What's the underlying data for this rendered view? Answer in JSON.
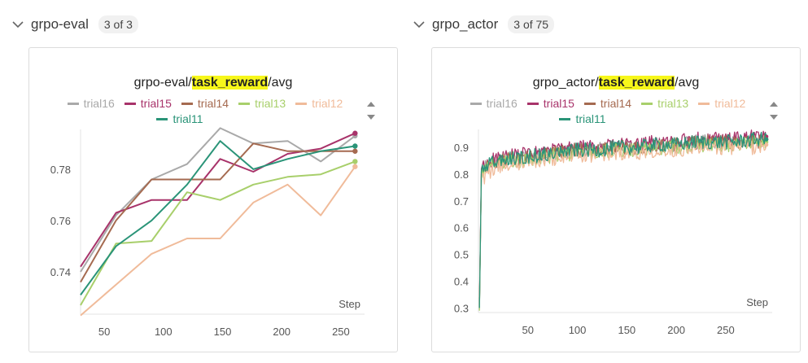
{
  "sections": [
    {
      "title": "grpo-eval",
      "count": "3 of 3"
    },
    {
      "title": "grpo_actor",
      "count": "3 of 75"
    }
  ],
  "colors": {
    "trial16": "#a9a9a9",
    "trial15": "#a8336a",
    "trial14": "#a56a50",
    "trial13": "#a8cf6b",
    "trial12": "#f0bb9a",
    "trial11": "#2a9478"
  },
  "panels": [
    {
      "title_prefix": "grpo-eval/",
      "title_highlight": "task_reward",
      "title_suffix": "/avg",
      "legend_row1": [
        "trial16",
        "trial15",
        "trial14",
        "trial13",
        "trial12"
      ],
      "legend_row2": [
        "trial11"
      ],
      "step_label": "Step"
    },
    {
      "title_prefix": "grpo_actor/",
      "title_highlight": "task_reward",
      "title_suffix": "/avg",
      "legend_row1": [
        "trial16",
        "trial15",
        "trial14",
        "trial13",
        "trial12"
      ],
      "legend_row2": [
        "trial11"
      ],
      "step_label": "Step"
    }
  ],
  "chart_data": [
    {
      "type": "line",
      "title": "grpo-eval/task_reward/avg",
      "xlabel": "Step",
      "xlim": [
        30,
        270
      ],
      "ylim": [
        0.7235,
        0.7955
      ],
      "xticks": [
        50,
        100,
        150,
        200,
        250
      ],
      "yticks": [
        0.74,
        0.76,
        0.78
      ],
      "ytick_labels": [
        "0.74",
        "0.76",
        "0.78"
      ],
      "legend": "top",
      "grid": false,
      "series": [
        {
          "name": "trial16",
          "x": [
            30,
            60,
            90,
            120,
            148,
            176,
            205,
            233,
            262
          ],
          "y": [
            0.74,
            0.762,
            0.776,
            0.782,
            0.796,
            0.79,
            0.791,
            0.783,
            0.793
          ]
        },
        {
          "name": "trial15",
          "x": [
            30,
            60,
            90,
            120,
            148,
            176,
            205,
            233,
            262
          ],
          "y": [
            0.742,
            0.763,
            0.768,
            0.768,
            0.784,
            0.779,
            0.786,
            0.788,
            0.794
          ]
        },
        {
          "name": "trial14",
          "x": [
            30,
            60,
            90,
            120,
            148,
            176,
            205,
            233,
            262
          ],
          "y": [
            0.736,
            0.76,
            0.776,
            0.776,
            0.776,
            0.79,
            0.787,
            0.787,
            0.787
          ]
        },
        {
          "name": "trial13",
          "x": [
            30,
            60,
            90,
            120,
            148,
            176,
            205,
            233,
            262
          ],
          "y": [
            0.727,
            0.751,
            0.752,
            0.771,
            0.768,
            0.774,
            0.777,
            0.778,
            0.783
          ]
        },
        {
          "name": "trial12",
          "x": [
            30,
            60,
            90,
            120,
            148,
            176,
            205,
            233,
            262
          ],
          "y": [
            0.723,
            0.735,
            0.747,
            0.753,
            0.753,
            0.767,
            0.774,
            0.762,
            0.781
          ]
        },
        {
          "name": "trial11",
          "x": [
            30,
            60,
            90,
            120,
            148,
            176,
            205,
            233,
            262
          ],
          "y": [
            0.731,
            0.75,
            0.76,
            0.774,
            0.791,
            0.78,
            0.784,
            0.787,
            0.789
          ]
        }
      ]
    },
    {
      "type": "line",
      "title": "grpo_actor/task_reward/avg",
      "xlabel": "Step",
      "xlim": [
        0,
        297
      ],
      "ylim": [
        0.283,
        0.967
      ],
      "xticks": [
        50,
        100,
        150,
        200,
        250
      ],
      "yticks": [
        0.3,
        0.4,
        0.5,
        0.6,
        0.7,
        0.8,
        0.9
      ],
      "ytick_labels": [
        "0.3",
        "0.4",
        "0.5",
        "0.6",
        "0.7",
        "0.8",
        "0.9"
      ],
      "legend": "top",
      "grid": false,
      "series": [
        {
          "name": "trial16",
          "x": [
            1,
            3,
            6,
            12,
            20,
            40,
            60,
            80,
            100,
            120,
            140,
            160,
            180,
            200,
            220,
            240,
            260,
            280,
            291
          ],
          "y": [
            0.3,
            0.81,
            0.82,
            0.84,
            0.85,
            0.86,
            0.87,
            0.88,
            0.89,
            0.89,
            0.9,
            0.9,
            0.91,
            0.91,
            0.92,
            0.92,
            0.92,
            0.93,
            0.93
          ]
        },
        {
          "name": "trial15",
          "x": [
            1,
            3,
            6,
            12,
            20,
            40,
            60,
            80,
            100,
            120,
            140,
            160,
            180,
            200,
            220,
            240,
            260,
            280,
            291
          ],
          "y": [
            0.31,
            0.82,
            0.83,
            0.85,
            0.86,
            0.87,
            0.88,
            0.89,
            0.9,
            0.9,
            0.91,
            0.91,
            0.92,
            0.92,
            0.93,
            0.93,
            0.93,
            0.94,
            0.94
          ]
        },
        {
          "name": "trial14",
          "x": [
            1,
            3,
            6,
            12,
            20,
            40,
            60,
            80,
            100,
            120,
            140,
            160,
            180,
            200,
            220,
            240,
            260,
            280,
            291
          ],
          "y": [
            0.3,
            0.8,
            0.82,
            0.84,
            0.85,
            0.86,
            0.87,
            0.88,
            0.89,
            0.89,
            0.9,
            0.9,
            0.91,
            0.91,
            0.92,
            0.92,
            0.92,
            0.92,
            0.93
          ]
        },
        {
          "name": "trial13",
          "x": [
            1,
            3,
            6,
            12,
            20,
            40,
            60,
            80,
            100,
            120,
            140,
            160,
            180,
            200,
            220,
            240,
            260,
            280,
            291
          ],
          "y": [
            0.29,
            0.8,
            0.81,
            0.83,
            0.84,
            0.85,
            0.86,
            0.87,
            0.88,
            0.88,
            0.89,
            0.89,
            0.9,
            0.9,
            0.91,
            0.91,
            0.91,
            0.92,
            0.92
          ]
        },
        {
          "name": "trial12",
          "x": [
            1,
            3,
            6,
            12,
            20,
            40,
            60,
            80,
            100,
            120,
            140,
            160,
            180,
            200,
            220,
            240,
            260,
            280,
            291
          ],
          "y": [
            0.34,
            0.78,
            0.79,
            0.81,
            0.83,
            0.84,
            0.85,
            0.86,
            0.87,
            0.87,
            0.88,
            0.88,
            0.89,
            0.89,
            0.9,
            0.9,
            0.9,
            0.9,
            0.91
          ]
        },
        {
          "name": "trial11",
          "x": [
            1,
            3,
            6,
            12,
            20,
            40,
            60,
            80,
            100,
            120,
            140,
            160,
            180,
            200,
            220,
            240,
            260,
            280,
            291
          ],
          "y": [
            0.3,
            0.81,
            0.82,
            0.84,
            0.85,
            0.86,
            0.87,
            0.88,
            0.89,
            0.89,
            0.9,
            0.9,
            0.91,
            0.91,
            0.92,
            0.92,
            0.92,
            0.93,
            0.93
          ]
        }
      ]
    }
  ]
}
